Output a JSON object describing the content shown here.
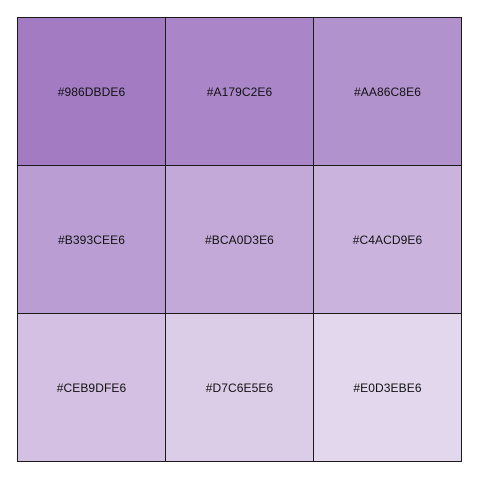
{
  "swatches": [
    {
      "label": "#986DBDE6",
      "color": "#986DBDE6"
    },
    {
      "label": "#A179C2E6",
      "color": "#A179C2E6"
    },
    {
      "label": "#AA86C8E6",
      "color": "#AA86C8E6"
    },
    {
      "label": "#B393CEE6",
      "color": "#B393CEE6"
    },
    {
      "label": "#BCA0D3E6",
      "color": "#BCA0D3E6"
    },
    {
      "label": "#C4ACD9E6",
      "color": "#C4ACD9E6"
    },
    {
      "label": "#CEB9DFE6",
      "color": "#CEB9DFE6"
    },
    {
      "label": "#D7C6E5E6",
      "color": "#D7C6E5E6"
    },
    {
      "label": "#E0D3EBE6",
      "color": "#E0D3EBE6"
    }
  ]
}
